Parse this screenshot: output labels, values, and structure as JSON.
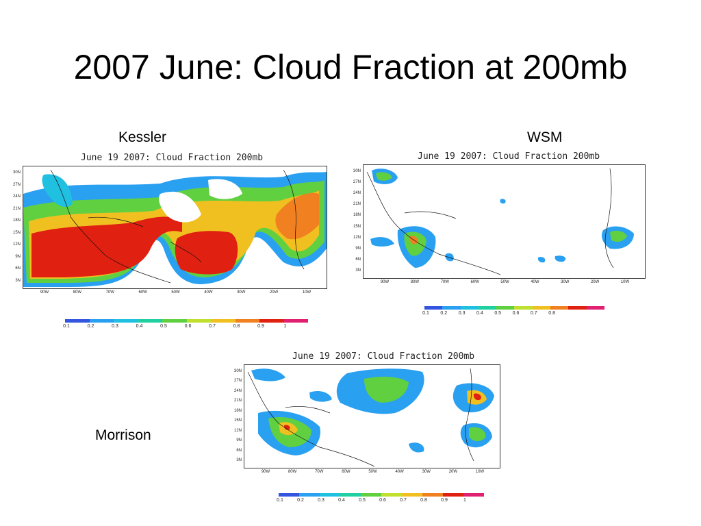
{
  "slide": {
    "title": "2007 June: Cloud Fraction at 200mb"
  },
  "panels": [
    {
      "caption": "Kessler",
      "map_title": "June 19 2007: Cloud Fraction 200mb",
      "lat_labels": [
        "30N",
        "27N",
        "24N",
        "21N",
        "18N",
        "15N",
        "12N",
        "9N",
        "6N",
        "3N"
      ],
      "lon_labels": [
        "90W",
        "80W",
        "70W",
        "60W",
        "50W",
        "40W",
        "30W",
        "20W",
        "10W"
      ],
      "colorbar_labels": [
        "0.1",
        "0.2",
        "0.3",
        "0.4",
        "0.5",
        "0.6",
        "0.7",
        "0.8",
        "0.9",
        "1"
      ],
      "colorbar_colors": [
        "#3355e0",
        "#2aa0f0",
        "#20c0e0",
        "#20d0a0",
        "#60d040",
        "#c0e030",
        "#f0c020",
        "#f08020",
        "#e02010",
        "#e02070"
      ]
    },
    {
      "caption": "WSM",
      "map_title": "June 19 2007: Cloud Fraction 200mb",
      "lat_labels": [
        "30N",
        "27N",
        "24N",
        "21N",
        "18N",
        "15N",
        "12N",
        "9N",
        "6N",
        "3N"
      ],
      "lon_labels": [
        "90W",
        "80W",
        "70W",
        "60W",
        "50W",
        "40W",
        "30W",
        "20W",
        "10W"
      ],
      "colorbar_labels": [
        "0.1",
        "0.2",
        "0.3",
        "0.4",
        "0.5",
        "0.6",
        "0.7",
        "0.8"
      ],
      "colorbar_colors": [
        "#3355e0",
        "#2aa0f0",
        "#20c0e0",
        "#20d0a0",
        "#60d040",
        "#c0e030",
        "#f0c020",
        "#f08020",
        "#e02010",
        "#e02070"
      ]
    },
    {
      "caption": "Morrison",
      "map_title": "June 19 2007: Cloud Fraction 200mb",
      "lat_labels": [
        "30N",
        "27N",
        "24N",
        "21N",
        "18N",
        "15N",
        "12N",
        "9N",
        "6N",
        "3N"
      ],
      "lon_labels": [
        "90W",
        "80W",
        "70W",
        "60W",
        "50W",
        "40W",
        "30W",
        "20W",
        "10W"
      ],
      "colorbar_labels": [
        "0.1",
        "0.2",
        "0.3",
        "0.4",
        "0.5",
        "0.6",
        "0.7",
        "0.8",
        "0.9",
        "1"
      ],
      "colorbar_colors": [
        "#3355e0",
        "#2aa0f0",
        "#20c0e0",
        "#20d0a0",
        "#60d040",
        "#c0e030",
        "#f0c020",
        "#f08020",
        "#e02010",
        "#e02070"
      ]
    }
  ]
}
